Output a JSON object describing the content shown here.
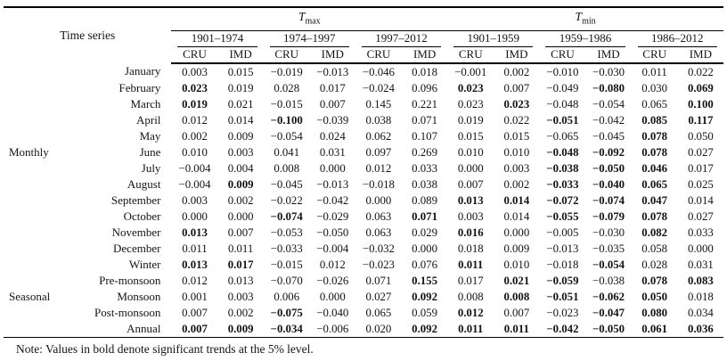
{
  "table": {
    "corner_header": "Time series",
    "top_groups": [
      {
        "symbol": "T",
        "subscript": "max"
      },
      {
        "symbol": "T",
        "subscript": "min"
      }
    ],
    "periods": [
      "1901–1974",
      "1974–1997",
      "1997–2012",
      "1901–1959",
      "1959–1986",
      "1986–2012"
    ],
    "source_headers": [
      "CRU",
      "IMD",
      "CRU",
      "IMD",
      "CRU",
      "IMD",
      "CRU",
      "IMD",
      "CRU",
      "IMD",
      "CRU",
      "IMD"
    ],
    "rows": [
      {
        "group": "",
        "label": "January",
        "values": [
          "0.003",
          "0.015",
          "−0.019",
          "−0.013",
          "−0.046",
          "0.018",
          "−0.001",
          "0.002",
          "−0.010",
          "−0.030",
          "0.011",
          "0.022"
        ],
        "bold": [
          0,
          0,
          0,
          0,
          0,
          0,
          0,
          0,
          0,
          0,
          0,
          0
        ]
      },
      {
        "group": "",
        "label": "February",
        "values": [
          "0.023",
          "0.019",
          "0.028",
          "0.017",
          "−0.024",
          "0.096",
          "0.023",
          "0.007",
          "−0.049",
          "−0.080",
          "0.030",
          "0.069"
        ],
        "bold": [
          1,
          0,
          0,
          0,
          0,
          0,
          1,
          0,
          0,
          1,
          0,
          1
        ]
      },
      {
        "group": "",
        "label": "March",
        "values": [
          "0.019",
          "0.021",
          "−0.015",
          "0.007",
          "0.145",
          "0.221",
          "0.023",
          "0.023",
          "−0.048",
          "−0.054",
          "0.065",
          "0.100"
        ],
        "bold": [
          1,
          0,
          0,
          0,
          0,
          0,
          0,
          1,
          0,
          0,
          0,
          1
        ]
      },
      {
        "group": "",
        "label": "April",
        "values": [
          "0.012",
          "0.014",
          "−0.100",
          "−0.039",
          "0.038",
          "0.071",
          "0.019",
          "0.022",
          "−0.051",
          "−0.042",
          "0.085",
          "0.117"
        ],
        "bold": [
          0,
          0,
          1,
          0,
          0,
          0,
          0,
          0,
          1,
          0,
          1,
          1
        ]
      },
      {
        "group": "",
        "label": "May",
        "values": [
          "0.002",
          "0.009",
          "−0.054",
          "0.024",
          "0.062",
          "0.107",
          "0.015",
          "0.015",
          "−0.065",
          "−0.045",
          "0.078",
          "0.050"
        ],
        "bold": [
          0,
          0,
          0,
          0,
          0,
          0,
          0,
          0,
          0,
          0,
          1,
          0
        ]
      },
      {
        "group": "Monthly",
        "label": "June",
        "values": [
          "0.010",
          "0.003",
          "0.041",
          "0.031",
          "0.097",
          "0.269",
          "0.010",
          "0.010",
          "−0.048",
          "−0.092",
          "0.078",
          "0.027"
        ],
        "bold": [
          0,
          0,
          0,
          0,
          0,
          0,
          0,
          0,
          1,
          1,
          1,
          0
        ]
      },
      {
        "group": "",
        "label": "July",
        "values": [
          "−0.004",
          "0.004",
          "0.008",
          "0.000",
          "0.012",
          "0.033",
          "0.000",
          "0.003",
          "−0.038",
          "−0.050",
          "0.046",
          "0.017"
        ],
        "bold": [
          0,
          0,
          0,
          0,
          0,
          0,
          0,
          0,
          1,
          1,
          1,
          0
        ]
      },
      {
        "group": "",
        "label": "August",
        "values": [
          "−0.004",
          "0.009",
          "−0.045",
          "−0.013",
          "−0.018",
          "0.038",
          "0.007",
          "0.002",
          "−0.033",
          "−0.040",
          "0.065",
          "0.025"
        ],
        "bold": [
          0,
          1,
          0,
          0,
          0,
          0,
          0,
          0,
          1,
          1,
          1,
          0
        ]
      },
      {
        "group": "",
        "label": "September",
        "values": [
          "0.003",
          "0.002",
          "−0.022",
          "−0.042",
          "0.000",
          "0.089",
          "0.013",
          "0.014",
          "−0.072",
          "−0.074",
          "0.047",
          "0.014"
        ],
        "bold": [
          0,
          0,
          0,
          0,
          0,
          0,
          1,
          1,
          1,
          1,
          1,
          0
        ]
      },
      {
        "group": "",
        "label": "October",
        "values": [
          "0.000",
          "0.000",
          "−0.074",
          "−0.029",
          "0.063",
          "0.071",
          "0.003",
          "0.014",
          "−0.055",
          "−0.079",
          "0.078",
          "0.027"
        ],
        "bold": [
          0,
          0,
          1,
          0,
          0,
          1,
          0,
          0,
          1,
          1,
          1,
          0
        ]
      },
      {
        "group": "",
        "label": "November",
        "values": [
          "0.013",
          "0.007",
          "−0.053",
          "−0.050",
          "0.063",
          "0.029",
          "0.016",
          "0.000",
          "−0.005",
          "−0.030",
          "0.082",
          "0.033"
        ],
        "bold": [
          1,
          0,
          0,
          0,
          0,
          0,
          1,
          0,
          0,
          0,
          1,
          0
        ]
      },
      {
        "group": "",
        "label": "December",
        "values": [
          "0.011",
          "0.011",
          "−0.033",
          "−0.004",
          "−0.032",
          "0.000",
          "0.018",
          "0.009",
          "−0.013",
          "−0.035",
          "0.058",
          "0.000"
        ],
        "bold": [
          0,
          0,
          0,
          0,
          0,
          0,
          0,
          0,
          0,
          0,
          0,
          0
        ]
      },
      {
        "group": "",
        "label": "Winter",
        "values": [
          "0.013",
          "0.017",
          "−0.015",
          "0.012",
          "−0.023",
          "0.076",
          "0.011",
          "0.010",
          "−0.018",
          "−0.054",
          "0.028",
          "0.031"
        ],
        "bold": [
          1,
          1,
          0,
          0,
          0,
          0,
          1,
          0,
          0,
          1,
          0,
          0
        ]
      },
      {
        "group": "",
        "label": "Pre-monsoon",
        "values": [
          "0.012",
          "0.013",
          "−0.070",
          "−0.026",
          "0.071",
          "0.155",
          "0.017",
          "0.021",
          "−0.059",
          "−0.038",
          "0.078",
          "0.083"
        ],
        "bold": [
          0,
          0,
          0,
          0,
          0,
          1,
          0,
          1,
          1,
          0,
          1,
          1
        ]
      },
      {
        "group": "Seasonal",
        "label": "Monsoon",
        "values": [
          "0.001",
          "0.003",
          "0.006",
          "0.000",
          "0.027",
          "0.092",
          "0.008",
          "0.008",
          "−0.051",
          "−0.062",
          "0.050",
          "0.018"
        ],
        "bold": [
          0,
          0,
          0,
          0,
          0,
          1,
          0,
          1,
          1,
          1,
          1,
          0
        ]
      },
      {
        "group": "",
        "label": "Post-monsoon",
        "values": [
          "0.007",
          "0.002",
          "−0.075",
          "−0.040",
          "0.065",
          "0.059",
          "0.012",
          "0.007",
          "−0.023",
          "−0.047",
          "0.080",
          "0.034"
        ],
        "bold": [
          0,
          0,
          1,
          0,
          0,
          0,
          1,
          0,
          0,
          1,
          1,
          0
        ]
      },
      {
        "group": "",
        "label": "Annual",
        "values": [
          "0.007",
          "0.009",
          "−0.034",
          "−0.006",
          "0.020",
          "0.092",
          "0.011",
          "0.011",
          "−0.042",
          "−0.050",
          "0.061",
          "0.036"
        ],
        "bold": [
          1,
          1,
          1,
          0,
          0,
          1,
          1,
          1,
          1,
          1,
          1,
          1
        ]
      }
    ],
    "note": "Note: Values in bold denote significant trends at the 5% level."
  }
}
